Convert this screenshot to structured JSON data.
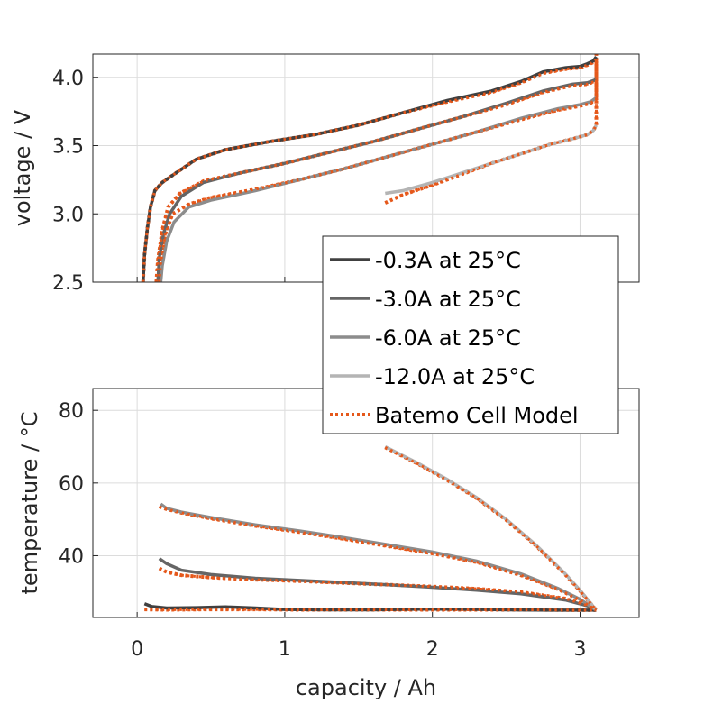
{
  "chart_data": [
    {
      "type": "line",
      "panel": "voltage",
      "xlabel": "",
      "ylabel": "voltage / V",
      "xlim": [
        -0.3,
        3.4
      ],
      "ylim": [
        2.5,
        4.17
      ],
      "xticks": [],
      "yticks": [
        2.5,
        3.0,
        3.5,
        4.0
      ],
      "ytick_labels": [
        "2.5",
        "3.0",
        "3.5",
        "4.0"
      ],
      "grid": true,
      "series": [
        {
          "name": "-0.3A at 25°C",
          "color": "#404040",
          "x": [
            0.04,
            0.05,
            0.07,
            0.09,
            0.12,
            0.17,
            0.25,
            0.4,
            0.6,
            0.9,
            1.2,
            1.5,
            1.8,
            2.1,
            2.4,
            2.6,
            2.75,
            2.9,
            3.0,
            3.05,
            3.09,
            3.11
          ],
          "y": [
            2.5,
            2.7,
            2.9,
            3.05,
            3.17,
            3.23,
            3.29,
            3.4,
            3.47,
            3.53,
            3.58,
            3.65,
            3.74,
            3.83,
            3.9,
            3.97,
            4.04,
            4.07,
            4.08,
            4.1,
            4.12,
            4.15
          ]
        },
        {
          "name": "-3.0A at 25°C",
          "color": "#656565",
          "x": [
            0.14,
            0.15,
            0.18,
            0.22,
            0.3,
            0.45,
            0.7,
            1.0,
            1.3,
            1.6,
            1.9,
            2.2,
            2.5,
            2.75,
            2.95,
            3.05,
            3.1,
            3.11
          ],
          "y": [
            2.5,
            2.68,
            2.86,
            3.0,
            3.13,
            3.23,
            3.3,
            3.37,
            3.45,
            3.53,
            3.62,
            3.71,
            3.81,
            3.9,
            3.95,
            3.96,
            3.98,
            4.0
          ]
        },
        {
          "name": "-6.0A at 25°C",
          "color": "#8c8c8c",
          "x": [
            0.16,
            0.17,
            0.2,
            0.25,
            0.35,
            0.5,
            0.8,
            1.1,
            1.4,
            1.7,
            2.0,
            2.3,
            2.6,
            2.85,
            3.0,
            3.07,
            3.11
          ],
          "y": [
            2.5,
            2.62,
            2.8,
            2.94,
            3.05,
            3.1,
            3.17,
            3.25,
            3.33,
            3.42,
            3.51,
            3.6,
            3.7,
            3.77,
            3.8,
            3.82,
            3.85
          ]
        },
        {
          "name": "-12.0A at 25°C",
          "color": "#b4b4b4",
          "x": [
            1.68,
            1.8,
            2.0,
            2.2,
            2.4,
            2.6,
            2.8,
            2.95,
            3.05,
            3.09,
            3.11
          ],
          "y": [
            3.15,
            3.17,
            3.23,
            3.3,
            3.37,
            3.44,
            3.51,
            3.55,
            3.58,
            3.61,
            3.65
          ]
        },
        {
          "name": "Batemo Cell Model",
          "color": "#e5581b",
          "dashed": true,
          "group": [
            {
              "x": [
                0.04,
                0.05,
                0.07,
                0.09,
                0.12,
                0.17,
                0.25,
                0.4,
                0.6,
                0.9,
                1.2,
                1.5,
                1.8,
                2.1,
                2.4,
                2.6,
                2.75,
                2.9,
                3.0,
                3.05,
                3.09,
                3.11,
                3.11
              ],
              "y": [
                2.5,
                2.7,
                2.9,
                3.05,
                3.17,
                3.23,
                3.29,
                3.4,
                3.47,
                3.53,
                3.58,
                3.65,
                3.74,
                3.82,
                3.89,
                3.96,
                4.03,
                4.06,
                4.07,
                4.09,
                4.11,
                4.13,
                4.17
              ]
            },
            {
              "x": [
                0.13,
                0.14,
                0.17,
                0.21,
                0.29,
                0.45,
                0.7,
                1.0,
                1.3,
                1.6,
                1.9,
                2.2,
                2.5,
                2.75,
                2.95,
                3.05,
                3.1,
                3.11,
                3.11
              ],
              "y": [
                2.5,
                2.66,
                2.88,
                3.05,
                3.15,
                3.24,
                3.3,
                3.37,
                3.45,
                3.53,
                3.62,
                3.71,
                3.8,
                3.89,
                3.94,
                3.95,
                3.97,
                3.99,
                4.15
              ]
            },
            {
              "x": [
                0.15,
                0.16,
                0.19,
                0.24,
                0.35,
                0.5,
                0.8,
                1.1,
                1.4,
                1.7,
                2.0,
                2.3,
                2.6,
                2.85,
                3.0,
                3.07,
                3.11,
                3.11
              ],
              "y": [
                2.5,
                2.64,
                2.85,
                3.0,
                3.07,
                3.12,
                3.18,
                3.25,
                3.33,
                3.42,
                3.51,
                3.6,
                3.69,
                3.76,
                3.79,
                3.81,
                3.84,
                4.12
              ]
            },
            {
              "x": [
                1.68,
                1.8,
                2.0,
                2.2,
                2.4,
                2.6,
                2.8,
                2.95,
                3.05,
                3.09,
                3.11,
                3.11
              ],
              "y": [
                3.08,
                3.14,
                3.21,
                3.29,
                3.37,
                3.44,
                3.51,
                3.55,
                3.58,
                3.61,
                3.65,
                4.1
              ]
            }
          ]
        }
      ]
    },
    {
      "type": "line",
      "panel": "temperature",
      "xlabel": "capacity / Ah",
      "ylabel": "temperature / °C",
      "xlim": [
        -0.3,
        3.4
      ],
      "ylim": [
        23,
        86
      ],
      "xticks": [
        0,
        1,
        2,
        3
      ],
      "xtick_labels": [
        "0",
        "1",
        "2",
        "3"
      ],
      "yticks": [
        40,
        60,
        80
      ],
      "ytick_labels": [
        "40",
        "60",
        "80"
      ],
      "grid": true,
      "series": [
        {
          "name": "-0.3A at 25°C",
          "color": "#404040",
          "x": [
            0.05,
            0.1,
            0.2,
            0.4,
            0.6,
            0.8,
            1.0,
            1.3,
            1.6,
            1.9,
            2.2,
            2.5,
            2.8,
            3.0,
            3.11
          ],
          "y": [
            26.8,
            26.0,
            25.6,
            25.7,
            25.9,
            25.6,
            25.2,
            25.1,
            25.1,
            25.3,
            25.3,
            25.1,
            25.0,
            25.0,
            25.0
          ]
        },
        {
          "name": "-3.0A at 25°C",
          "color": "#656565",
          "x": [
            0.15,
            0.2,
            0.3,
            0.5,
            0.8,
            1.1,
            1.4,
            1.7,
            2.0,
            2.3,
            2.6,
            2.9,
            3.05,
            3.11
          ],
          "y": [
            39.2,
            37.8,
            36.0,
            34.8,
            33.8,
            33.2,
            32.6,
            32.0,
            31.3,
            30.5,
            29.5,
            27.8,
            26.2,
            25.0
          ]
        },
        {
          "name": "-6.0A at 25°C",
          "color": "#8c8c8c",
          "x": [
            0.16,
            0.2,
            0.3,
            0.5,
            0.8,
            1.1,
            1.4,
            1.7,
            2.0,
            2.3,
            2.6,
            2.85,
            3.0,
            3.11
          ],
          "y": [
            54.2,
            53.0,
            52.0,
            50.5,
            48.5,
            46.8,
            45.0,
            43.0,
            41.0,
            38.5,
            35.0,
            31.0,
            28.0,
            25.0
          ]
        },
        {
          "name": "-12.0A at 25°C",
          "color": "#b4b4b4",
          "x": [
            1.68,
            1.9,
            2.1,
            2.3,
            2.5,
            2.7,
            2.9,
            3.0,
            3.11
          ],
          "y": [
            70.0,
            65.5,
            61.0,
            56.0,
            50.0,
            43.0,
            35.0,
            30.5,
            25.0
          ]
        },
        {
          "name": "Batemo Cell Model",
          "color": "#e5581b",
          "dashed": true,
          "group": [
            {
              "x": [
                0.05,
                0.2,
                0.5,
                0.8,
                1.1,
                1.5,
                1.9,
                2.3,
                2.7,
                3.0,
                3.11
              ],
              "y": [
                25.2,
                25.1,
                25.2,
                25.2,
                25.1,
                25.1,
                25.1,
                25.1,
                25.1,
                25.0,
                25.0
              ]
            },
            {
              "x": [
                0.15,
                0.2,
                0.3,
                0.5,
                0.8,
                1.1,
                1.4,
                1.7,
                2.0,
                2.3,
                2.6,
                2.9,
                3.05,
                3.11
              ],
              "y": [
                36.5,
                35.5,
                34.6,
                34.0,
                33.4,
                33.0,
                32.5,
                32.0,
                31.5,
                30.9,
                30.0,
                28.2,
                26.3,
                25.0
              ]
            },
            {
              "x": [
                0.15,
                0.2,
                0.3,
                0.5,
                0.8,
                1.1,
                1.4,
                1.7,
                2.0,
                2.3,
                2.6,
                2.85,
                3.0,
                3.11
              ],
              "y": [
                53.5,
                52.8,
                51.8,
                50.2,
                48.2,
                46.5,
                44.6,
                42.6,
                40.6,
                38.2,
                34.6,
                30.8,
                27.8,
                25.0
              ]
            },
            {
              "x": [
                1.68,
                1.9,
                2.1,
                2.3,
                2.5,
                2.7,
                2.9,
                3.0,
                3.11
              ],
              "y": [
                69.8,
                65.3,
                60.8,
                55.8,
                49.8,
                42.8,
                34.8,
                30.3,
                25.0
              ]
            }
          ]
        }
      ]
    }
  ],
  "legend": {
    "placement": "right, between panels",
    "entries": [
      {
        "label": "-0.3A at 25°C",
        "color": "#404040",
        "dashed": false
      },
      {
        "label": "-3.0A at 25°C",
        "color": "#656565",
        "dashed": false
      },
      {
        "label": "-6.0A at 25°C",
        "color": "#8c8c8c",
        "dashed": false
      },
      {
        "label": "-12.0A at 25°C",
        "color": "#b4b4b4",
        "dashed": false
      },
      {
        "label": "Batemo Cell Model",
        "color": "#e5581b",
        "dashed": true
      }
    ]
  }
}
